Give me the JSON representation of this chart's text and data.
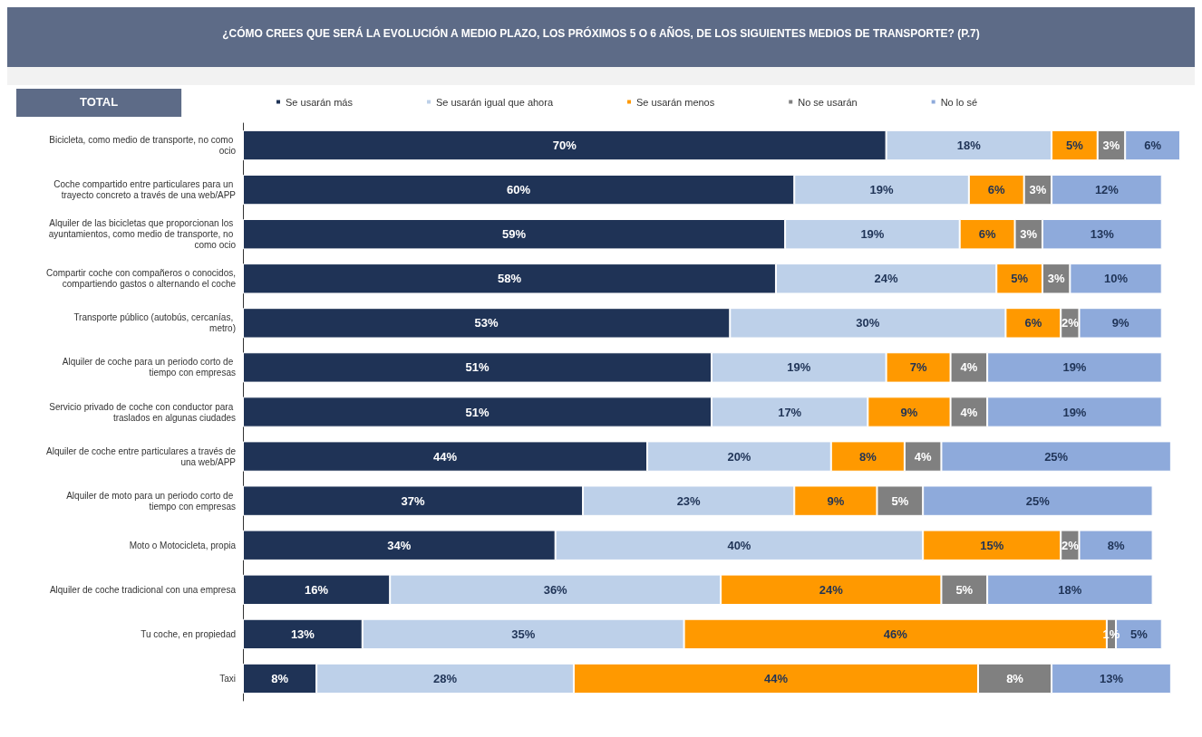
{
  "chart_data": {
    "type": "bar",
    "orientation": "horizontal",
    "stacked": true,
    "title": "¿CÓMO CREES QUE SERÁ LA EVOLUCIÓN A MEDIO PLAZO, LOS PRÓXIMOS 5 O 6 AÑOS, DE LOS SIGUIENTES MEDIOS DE TRANSPORTE? (P.7)",
    "subtitle": "TOTAL",
    "legend": "top",
    "categories": [
      "Bicicleta, como medio de transporte, no como ocio",
      "Coche compartido entre particulares para un trayecto concreto a través de una web/APP",
      "Alquiler de las bicicletas que proporcionan los ayuntamientos, como medio de transporte, no como ocio",
      "Compartir coche con compañeros o conocidos, compartiendo gastos o alternando el coche",
      "Transporte público (autobús, cercanías, metro)",
      "Alquiler de coche para un periodo corto de tiempo con empresas",
      "Servicio privado de coche con conductor para traslados en algunas ciudades",
      "Alquiler de coche entre particulares a través de una web/APP",
      "Alquiler de moto para un periodo corto de tiempo con empresas",
      "Moto o Motocicleta, propia",
      "Alquiler de coche tradicional con una empresa",
      "Tu coche, en propiedad",
      "Taxi"
    ],
    "series": [
      {
        "name": "Se usarán más",
        "color": "#1f3356",
        "values": [
          70,
          60,
          59,
          58,
          53,
          51,
          51,
          44,
          37,
          34,
          16,
          13,
          8
        ],
        "value_labels": [
          "70%",
          "60%",
          "59%",
          "58%",
          "53%",
          "51%",
          "51%",
          "44%",
          "37%",
          "34%",
          "16%",
          "13%",
          "8%"
        ]
      },
      {
        "name": "Se usarán igual que ahora",
        "color": "#bdd0e9",
        "values": [
          18,
          19,
          19,
          24,
          30,
          19,
          17,
          20,
          23,
          40,
          36,
          35,
          28
        ],
        "value_labels": [
          "18%",
          "19%",
          "19%",
          "24%",
          "30%",
          "19%",
          "17%",
          "20%",
          "23%",
          "40%",
          "36%",
          "35%",
          "28%"
        ]
      },
      {
        "name": "Se usarán menos",
        "color": "#ff9900",
        "values": [
          5,
          6,
          6,
          5,
          6,
          7,
          9,
          8,
          9,
          15,
          24,
          46,
          44
        ],
        "value_labels": [
          "5%",
          "6%",
          "6%",
          "5%",
          "6%",
          "7%",
          "9%",
          "8%",
          "9%",
          "15%",
          "24%",
          "46%",
          "44%"
        ]
      },
      {
        "name": "No se usarán",
        "color": "#808080",
        "values": [
          3,
          3,
          3,
          3,
          2,
          4,
          4,
          4,
          5,
          2,
          5,
          1,
          8
        ],
        "value_labels": [
          "3%",
          "3%",
          "3%",
          "3%",
          "2%",
          "4%",
          "4%",
          "4%",
          "5%",
          "2%",
          "5%",
          "1%",
          "8%"
        ]
      },
      {
        "name": "No lo sé",
        "color": "#8eaadb",
        "values": [
          6,
          12,
          13,
          10,
          9,
          19,
          19,
          25,
          25,
          8,
          18,
          5,
          13
        ],
        "value_labels": [
          "6%",
          "12%",
          "13%",
          "10%",
          "9%",
          "19%",
          "19%",
          "25%",
          "25%",
          "8%",
          "18%",
          "5%",
          "13%"
        ]
      }
    ]
  }
}
